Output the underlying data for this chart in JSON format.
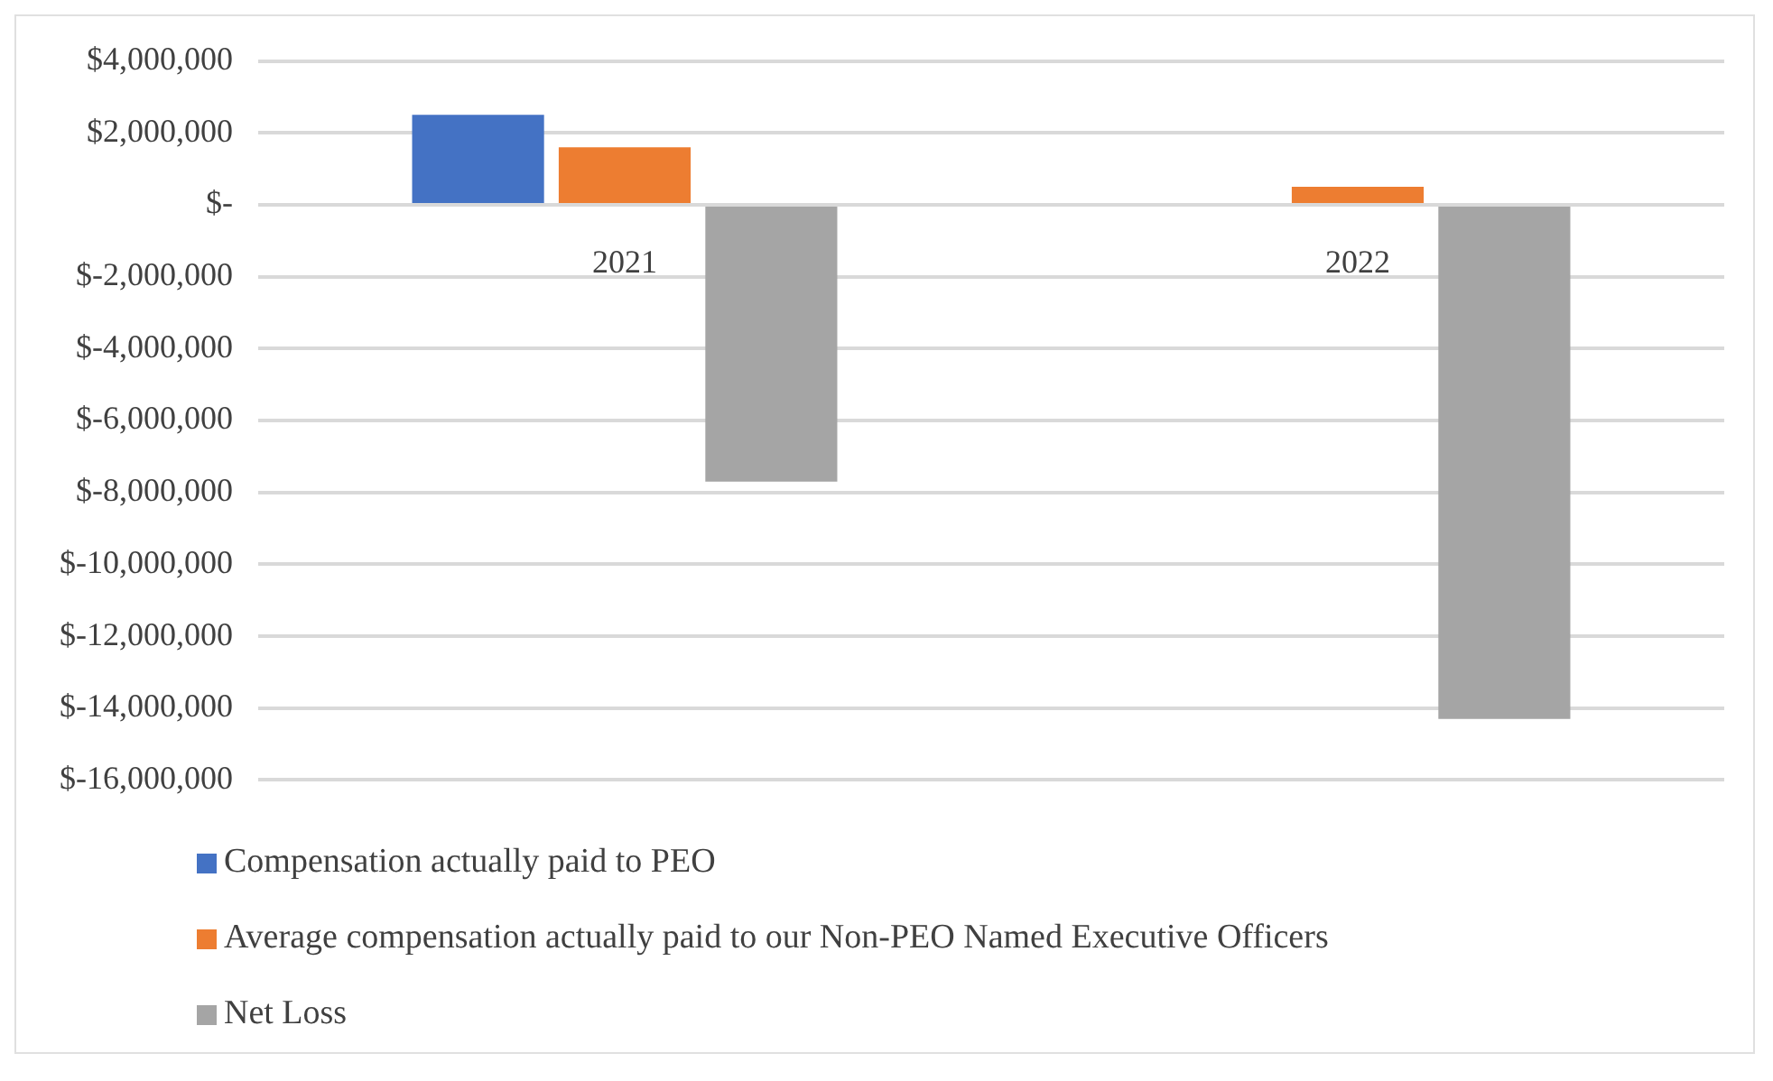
{
  "chart_data": {
    "type": "bar",
    "categories": [
      "2021",
      "2022"
    ],
    "series": [
      {
        "name": "Compensation actually paid to  PEO",
        "color": "#4472c4",
        "values": [
          2500000,
          0
        ]
      },
      {
        "name": "Average compensation actually paid to our Non-PEO Named Executive Officers",
        "color": "#ed7d31",
        "values": [
          1600000,
          500000
        ]
      },
      {
        "name": "Net Loss",
        "color": "#a5a5a5",
        "values": [
          -7700000,
          -14300000
        ]
      }
    ],
    "ylim": [
      -16000000,
      4000000
    ],
    "yticks": [
      {
        "value": 4000000,
        "label": "$4,000,000"
      },
      {
        "value": 2000000,
        "label": "$2,000,000"
      },
      {
        "value": 0,
        "label": "$-"
      },
      {
        "value": -2000000,
        "label": "$-2,000,000"
      },
      {
        "value": -4000000,
        "label": "$-4,000,000"
      },
      {
        "value": -6000000,
        "label": "$-6,000,000"
      },
      {
        "value": -8000000,
        "label": "$-8,000,000"
      },
      {
        "value": -10000000,
        "label": "$-10,000,000"
      },
      {
        "value": -12000000,
        "label": "$-12,000,000"
      },
      {
        "value": -14000000,
        "label": "$-14,000,000"
      },
      {
        "value": -16000000,
        "label": "$-16,000,000"
      }
    ],
    "grid": "y",
    "legend": "bottom"
  }
}
